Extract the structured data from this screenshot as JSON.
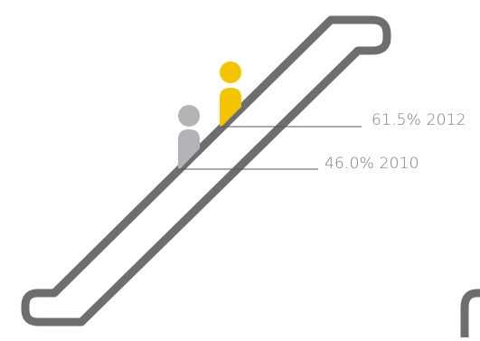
{
  "escalator": {
    "colors": {
      "rail": "#6e6e6e",
      "figure_2012": "#f5c400",
      "figure_2010": "#b4b4b8",
      "leader_line": "#555555",
      "label_text": "#7a7a7a"
    },
    "markers": [
      {
        "id": "2012",
        "percent": "61.5%",
        "year": "2012",
        "label": "61.5% 2012"
      },
      {
        "id": "2010",
        "percent": "46.0%",
        "year": "2010",
        "label": "46.0% 2010"
      }
    ]
  }
}
